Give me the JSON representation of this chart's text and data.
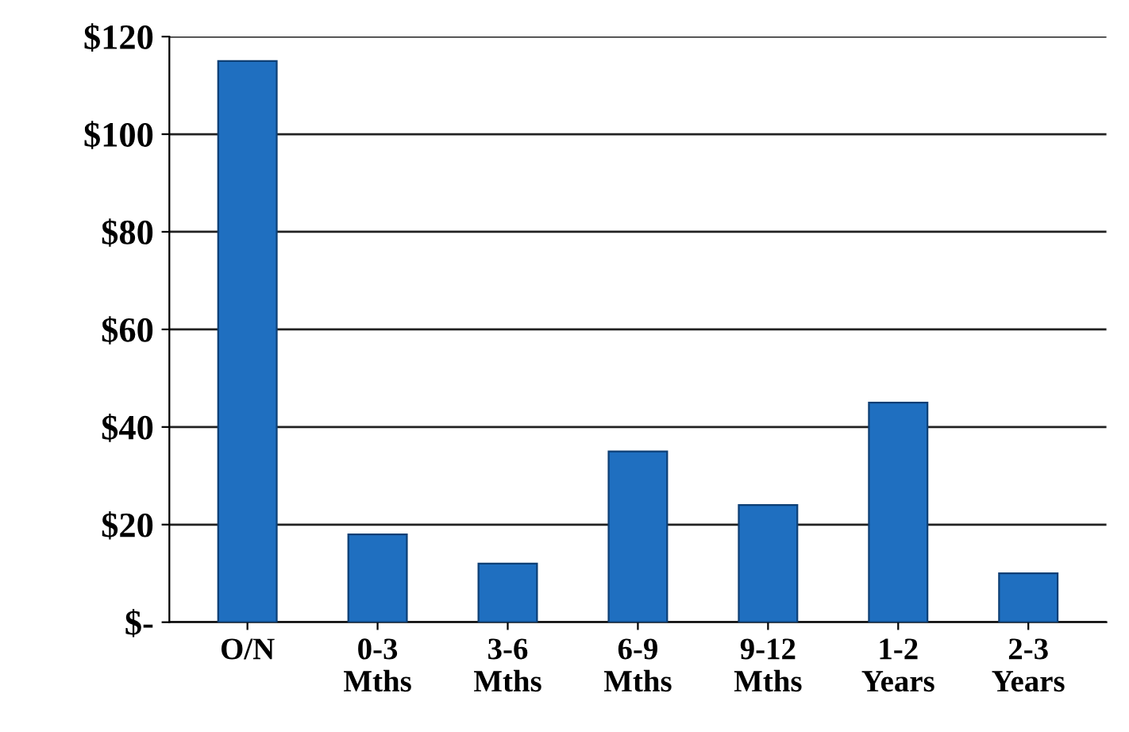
{
  "chart_data": {
    "type": "bar",
    "categories": [
      "O/N",
      "0-3\nMths",
      "3-6\nMths",
      "6-9\nMths",
      "9-12\nMths",
      "1-2\nYears",
      "2-3\nYears"
    ],
    "values": [
      115,
      18,
      12,
      35,
      24,
      45,
      10
    ],
    "color": "#1f6fc0",
    "ylim": [
      0,
      120
    ],
    "yticks": [
      {
        "value": 0,
        "label": "$-"
      },
      {
        "value": 20,
        "label": "$20"
      },
      {
        "value": 40,
        "label": "$40"
      },
      {
        "value": 60,
        "label": "$60"
      },
      {
        "value": 80,
        "label": "$80"
      },
      {
        "value": 100,
        "label": "$100"
      },
      {
        "value": 120,
        "label": "$120"
      }
    ],
    "grid": "y"
  }
}
